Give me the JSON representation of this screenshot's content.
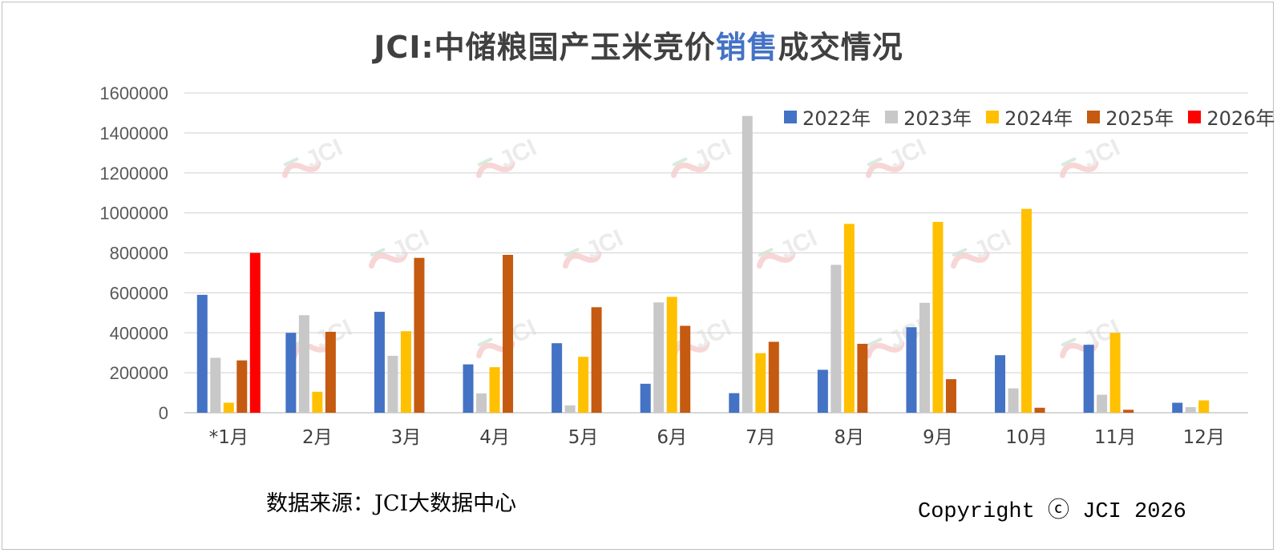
{
  "title": {
    "prefix": "JCI:中储粮国产玉米竞价",
    "highlight": "销售",
    "suffix": "成交情况"
  },
  "source_text": "数据来源：JCI大数据中心",
  "copyright_text": "Copyright ⓒ JCI 2026",
  "watermark_text": "JCI",
  "colors": {
    "2022年": "#4472c4",
    "2023年": "#c8c8c8",
    "2024年": "#ffc000",
    "2025年": "#c55a11",
    "2026年": "#ff0000"
  },
  "chart_data": {
    "type": "bar",
    "title": "JCI:中储粮国产玉米竞价销售成交情况",
    "categories": [
      "*1月",
      "2月",
      "3月",
      "4月",
      "5月",
      "6月",
      "7月",
      "8月",
      "9月",
      "10月",
      "11月",
      "12月"
    ],
    "series": [
      {
        "name": "2022年",
        "values": [
          590000,
          400000,
          505000,
          242000,
          348000,
          145000,
          98000,
          215000,
          428000,
          288000,
          340000,
          50000
        ]
      },
      {
        "name": "2023年",
        "values": [
          275000,
          488000,
          285000,
          97000,
          37000,
          552000,
          1485000,
          740000,
          550000,
          122000,
          90000,
          28000
        ]
      },
      {
        "name": "2024年",
        "values": [
          50000,
          105000,
          408000,
          228000,
          280000,
          580000,
          298000,
          945000,
          955000,
          1020000,
          400000,
          62000
        ]
      },
      {
        "name": "2025年",
        "values": [
          262000,
          405000,
          775000,
          790000,
          528000,
          435000,
          355000,
          345000,
          168000,
          25000,
          15000,
          null
        ]
      },
      {
        "name": "2026年",
        "values": [
          800000,
          null,
          null,
          null,
          null,
          null,
          null,
          null,
          null,
          null,
          null,
          null
        ]
      }
    ],
    "yticks": [
      "0",
      "200000",
      "400000",
      "600000",
      "800000",
      "1000000",
      "1200000",
      "1400000",
      "1600000"
    ],
    "ylim": [
      0,
      1600000
    ],
    "grid": true,
    "legend_position": "top-right"
  }
}
